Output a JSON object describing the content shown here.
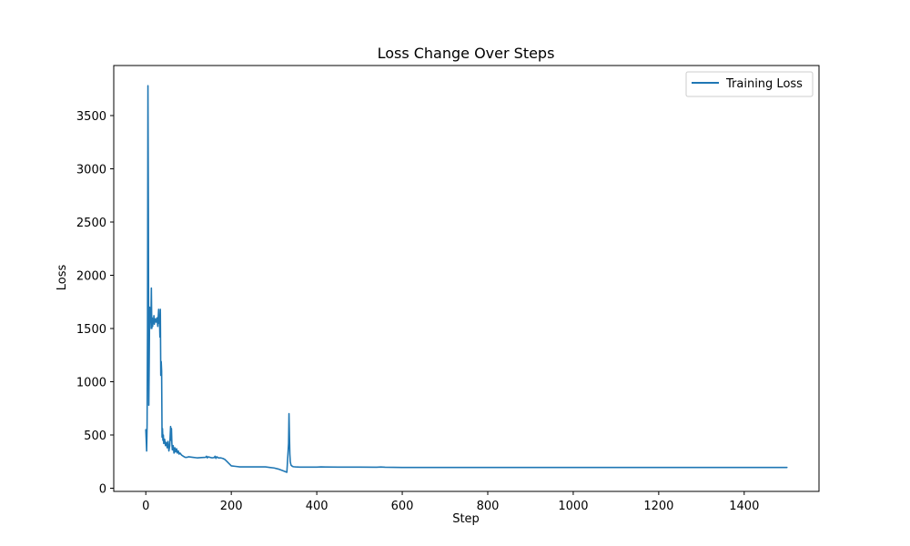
{
  "chart_data": {
    "type": "line",
    "title": "Loss Change Over Steps",
    "xlabel": "Step",
    "ylabel": "Loss",
    "xlim": [
      -75,
      1575
    ],
    "ylim": [
      -30,
      3970
    ],
    "xticks": [
      0,
      200,
      400,
      600,
      800,
      1000,
      1200,
      1400
    ],
    "yticks": [
      0,
      500,
      1000,
      1500,
      2000,
      2500,
      3000,
      3500
    ],
    "grid": false,
    "legend_position": "top-right",
    "series": [
      {
        "name": "Training Loss",
        "color": "#1f77b4",
        "x": [
          0,
          2,
          3,
          4,
          5,
          6,
          7,
          8,
          9,
          10,
          11,
          12,
          13,
          14,
          15,
          16,
          17,
          18,
          19,
          20,
          22,
          24,
          26,
          28,
          30,
          31,
          32,
          33,
          34,
          35,
          36,
          37,
          38,
          39,
          40,
          41,
          42,
          44,
          46,
          48,
          50,
          52,
          54,
          56,
          58,
          59,
          60,
          61,
          62,
          64,
          66,
          68,
          70,
          72,
          74,
          76,
          78,
          80,
          84,
          88,
          92,
          96,
          100,
          110,
          120,
          130,
          140,
          142,
          144,
          146,
          150,
          155,
          160,
          162,
          164,
          166,
          170,
          175,
          180,
          185,
          190,
          195,
          200,
          210,
          220,
          240,
          260,
          280,
          290,
          300,
          310,
          320,
          330,
          334,
          335,
          336,
          337,
          338,
          339,
          340,
          342,
          345,
          350,
          360,
          380,
          400,
          410,
          420,
          450,
          500,
          540,
          550,
          560,
          580,
          600,
          700,
          800,
          900,
          1000,
          1100,
          1200,
          1300,
          1400,
          1500
        ],
        "y": [
          550,
          350,
          600,
          1500,
          3780,
          2600,
          780,
          1200,
          1700,
          1500,
          1650,
          1560,
          1880,
          1500,
          1600,
          1520,
          1580,
          1560,
          1620,
          1540,
          1590,
          1560,
          1600,
          1520,
          1680,
          1550,
          1600,
          1420,
          1680,
          1060,
          1190,
          1100,
          480,
          560,
          450,
          500,
          420,
          460,
          400,
          430,
          380,
          440,
          350,
          400,
          580,
          450,
          560,
          420,
          360,
          400,
          330,
          380,
          340,
          370,
          330,
          350,
          320,
          330,
          310,
          300,
          290,
          290,
          295,
          290,
          285,
          288,
          290,
          300,
          285,
          295,
          290,
          285,
          288,
          300,
          280,
          295,
          285,
          285,
          280,
          270,
          250,
          230,
          210,
          205,
          200,
          200,
          200,
          200,
          195,
          190,
          180,
          165,
          150,
          420,
          700,
          500,
          320,
          250,
          230,
          215,
          208,
          202,
          200,
          198,
          198,
          198,
          200,
          199,
          198,
          198,
          197,
          199,
          197,
          196,
          195,
          195,
          195,
          195,
          195,
          195,
          195,
          195,
          195,
          195
        ]
      }
    ]
  }
}
